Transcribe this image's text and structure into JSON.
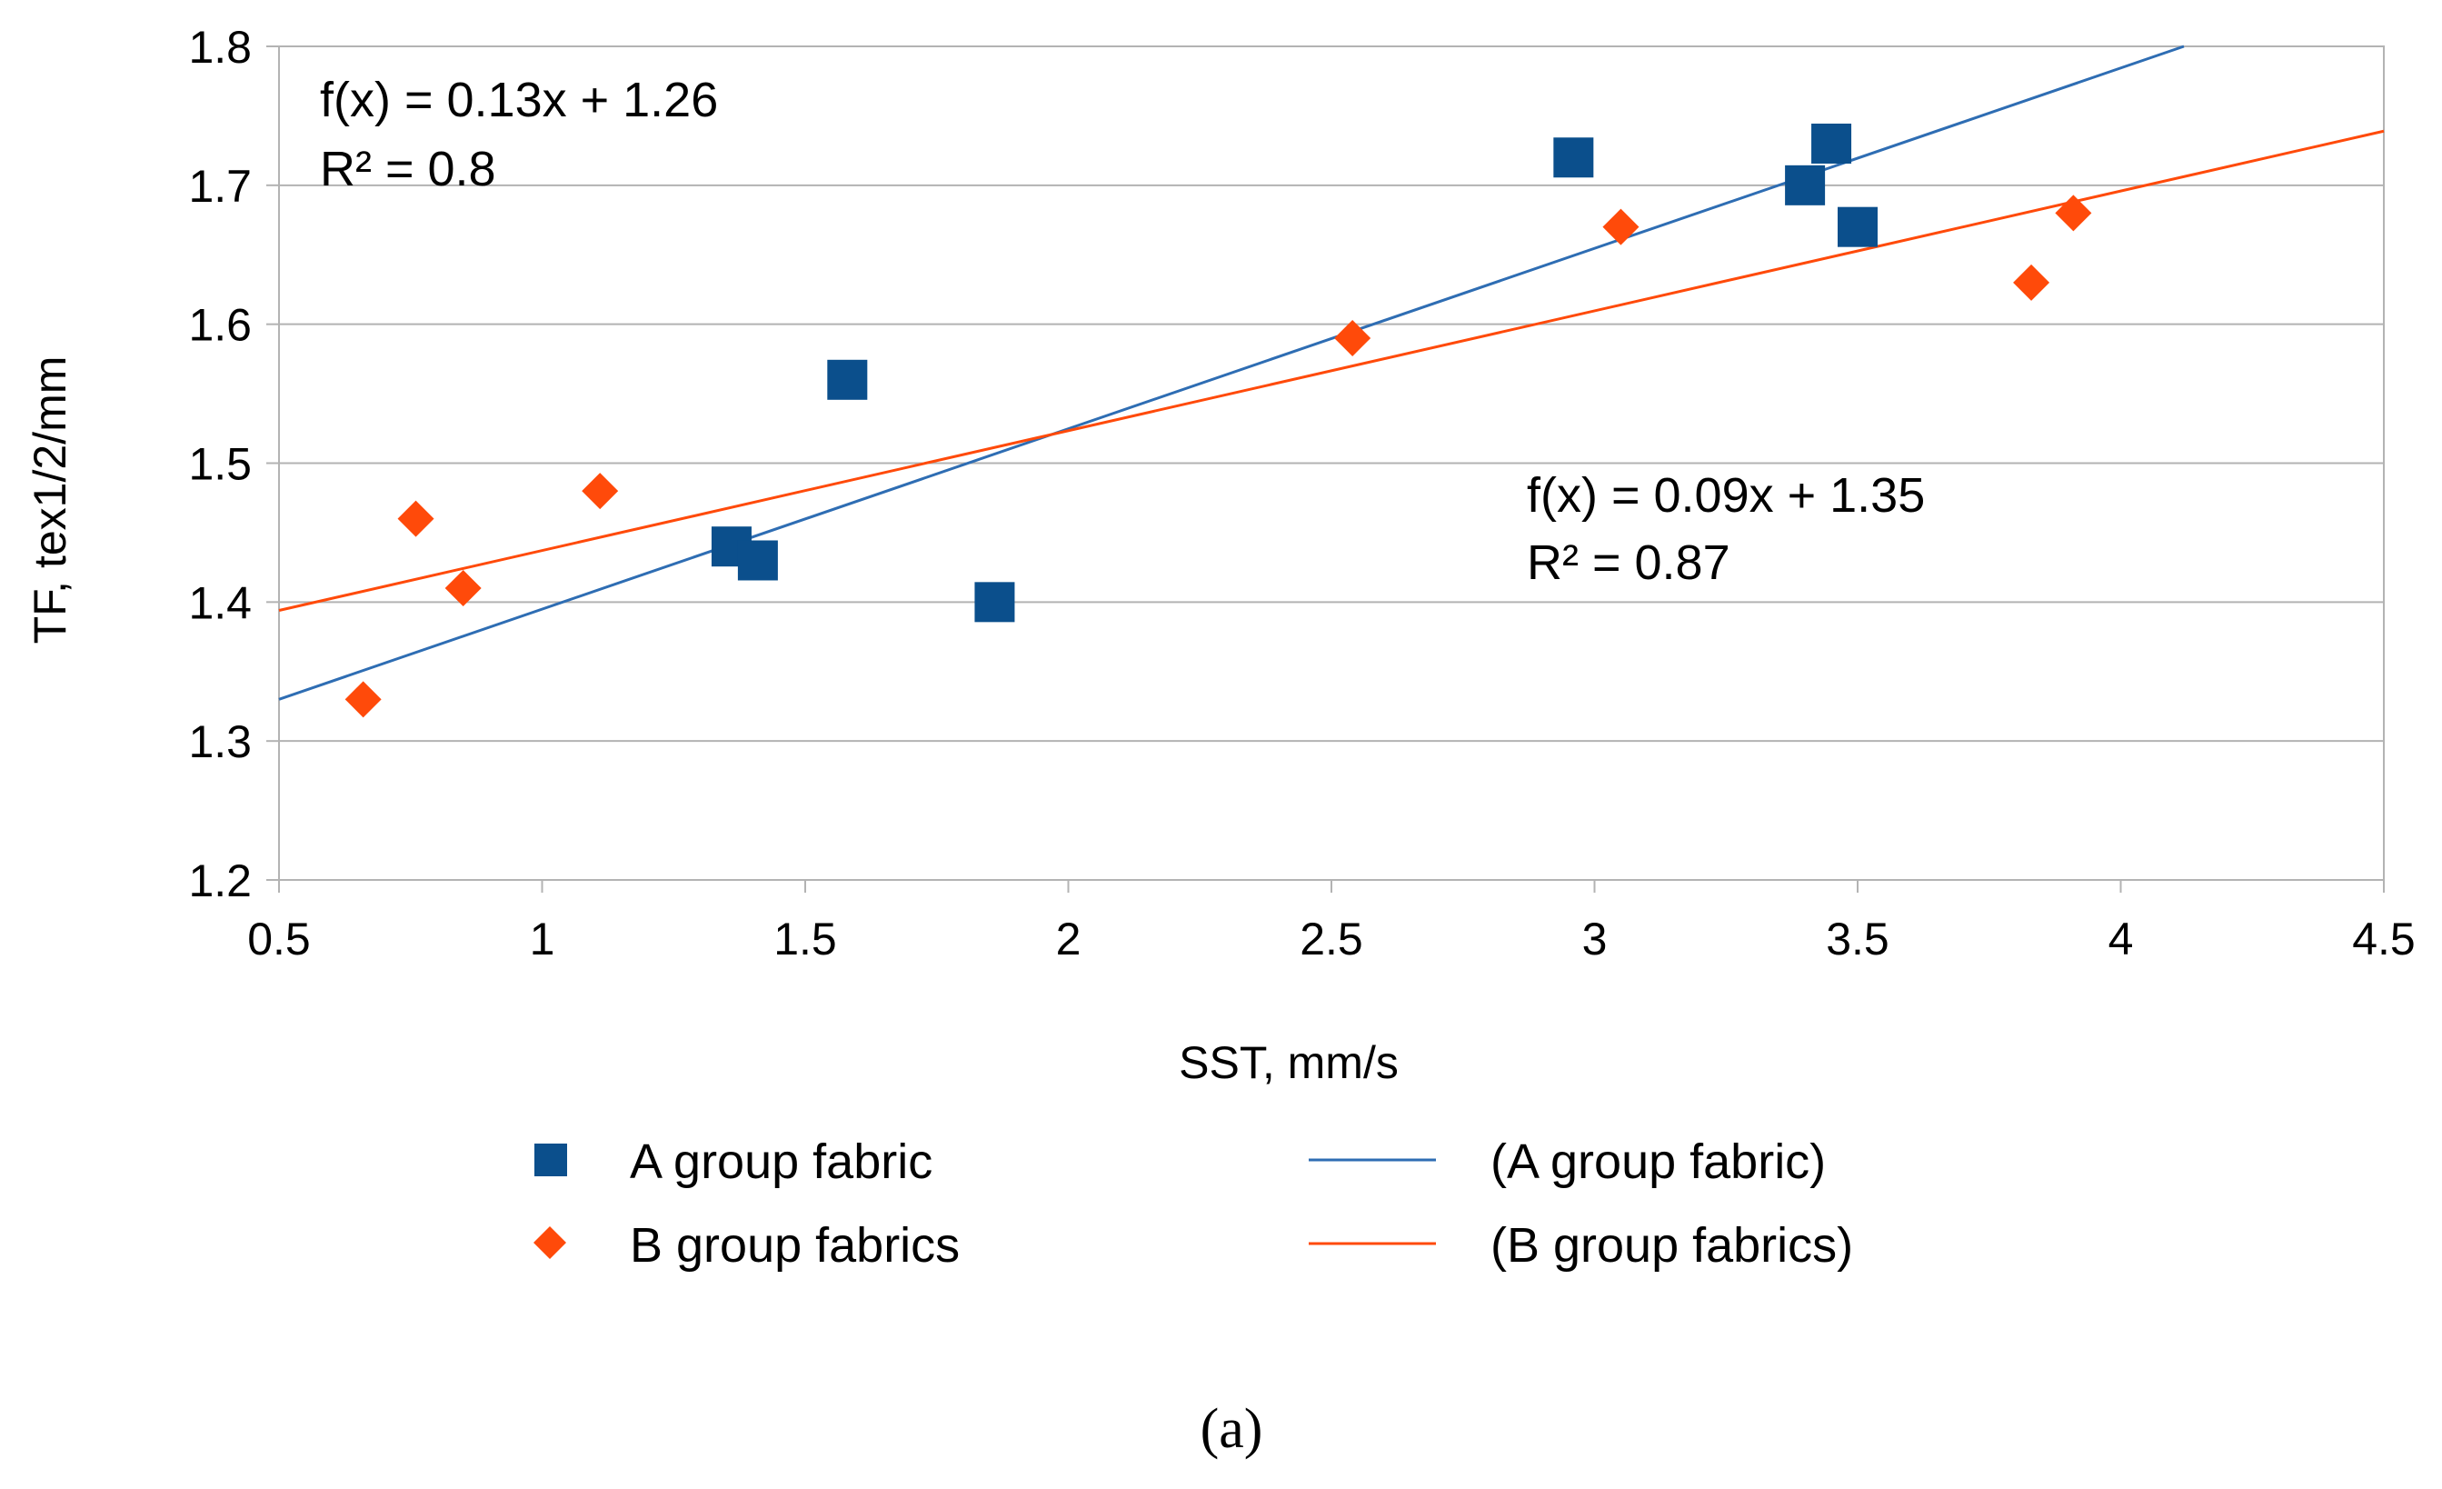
{
  "chart_data": {
    "type": "scatter",
    "xlabel": "SST, mm/s",
    "ylabel": "TF, tex1/2/mm",
    "xlim": [
      0.5,
      4.5
    ],
    "ylim": [
      1.2,
      1.8
    ],
    "x_ticks": [
      "0.5",
      "1",
      "1.5",
      "2",
      "2.5",
      "3",
      "3.5",
      "4",
      "4.5"
    ],
    "x_tick_values": [
      0.5,
      1,
      1.5,
      2,
      2.5,
      3,
      3.5,
      4,
      4.5
    ],
    "y_ticks": [
      "1.2",
      "1.3",
      "1.4",
      "1.5",
      "1.6",
      "1.7",
      "1.8"
    ],
    "y_tick_values": [
      1.2,
      1.3,
      1.4,
      1.5,
      1.6,
      1.7,
      1.8
    ],
    "grid": "horizontal",
    "series": [
      {
        "name": "A group fabric",
        "marker": "square",
        "color": "#0B4F8C",
        "points": [
          {
            "x": 1.36,
            "y": 1.44
          },
          {
            "x": 1.41,
            "y": 1.43
          },
          {
            "x": 1.58,
            "y": 1.56
          },
          {
            "x": 1.86,
            "y": 1.4
          },
          {
            "x": 2.96,
            "y": 1.72
          },
          {
            "x": 3.4,
            "y": 1.7
          },
          {
            "x": 3.45,
            "y": 1.73
          },
          {
            "x": 3.5,
            "y": 1.67
          }
        ]
      },
      {
        "name": "B group fabrics",
        "marker": "diamond",
        "color": "#FF4A0A",
        "points": [
          {
            "x": 0.66,
            "y": 1.33
          },
          {
            "x": 0.76,
            "y": 1.46
          },
          {
            "x": 0.85,
            "y": 1.41
          },
          {
            "x": 1.11,
            "y": 1.48
          },
          {
            "x": 2.54,
            "y": 1.59
          },
          {
            "x": 3.05,
            "y": 1.67
          },
          {
            "x": 3.83,
            "y": 1.63
          },
          {
            "x": 3.91,
            "y": 1.68
          }
        ]
      }
    ],
    "trendlines": [
      {
        "name": "(A group fabric)",
        "color": "#2E6DB3",
        "slope": 0.13,
        "intercept": 1.26,
        "x_range": [
          0.5,
          4.12
        ],
        "y_points": [
          1.33,
          1.8
        ],
        "equation": "f(x) = 0.13x + 1.26",
        "r2": "R² = 0.8"
      },
      {
        "name": "(B group fabrics)",
        "color": "#FF4A0A",
        "slope": 0.09,
        "intercept": 1.35,
        "x_range": [
          0.5,
          4.5
        ],
        "y_points": [
          1.394,
          1.739
        ],
        "equation": "f(x) = 0.09x + 1.35",
        "r2": "R² = 0.87"
      }
    ],
    "legend": {
      "placement": "bottom",
      "entries": [
        "A group fabric",
        "B group fabrics",
        "(A group fabric)",
        "(B group fabrics)"
      ]
    }
  },
  "caption": "(a)"
}
